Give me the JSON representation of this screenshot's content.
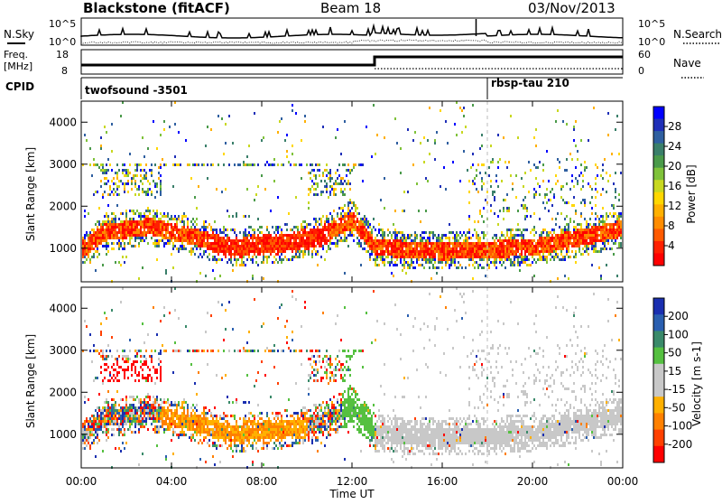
{
  "header": {
    "station": "Blackstone (fitACF)",
    "beam": "Beam 18",
    "date": "03/Nov/2013"
  },
  "nsky_panel": {
    "left_label": "N.Sky",
    "right_label": "N.Search",
    "ticks_left": [
      "10^5",
      "10^0"
    ],
    "ticks_right": [
      "10^5",
      "10^0"
    ]
  },
  "freq_panel": {
    "left_label_1": "Freq.",
    "left_label_2": "[MHz]",
    "right_label": "Nave",
    "ticks_left": [
      "18",
      "8"
    ],
    "ticks_right": [
      "60",
      "0"
    ]
  },
  "cpid_panel": {
    "label": "CPID",
    "segments": [
      {
        "name": "twofsound -3501",
        "start_hour": 0
      },
      {
        "name": "rbsp-tau 210",
        "start_hour": 18
      }
    ]
  },
  "colorbars": {
    "power": {
      "label": "Power [dB]",
      "ticks": [
        "28",
        "24",
        "20",
        "16",
        "12",
        "8",
        "4"
      ],
      "colors": [
        "#0000ff",
        "#1f2fb8",
        "#2f5fa0",
        "#3a7f6a",
        "#4a9a4a",
        "#7fc23a",
        "#c8d820",
        "#ffd700",
        "#ffb000",
        "#ff8c00",
        "#ff5a00",
        "#ff2000",
        "#ff0000"
      ]
    },
    "velocity": {
      "label": "Velocity [m s-1]",
      "ticks": [
        "200",
        "100",
        "50",
        "15",
        "-15",
        "-50",
        "-100",
        "-200"
      ],
      "colors": [
        "#1a2fb0",
        "#2a5fb0",
        "#3a8a6a",
        "#55c040",
        "#c8c8c8",
        "#c8c8c8",
        "#ffb000",
        "#ff8000",
        "#ff4000",
        "#ff0000"
      ]
    }
  },
  "time_axis": {
    "title": "Time UT",
    "ticks": [
      "00:00",
      "04:00",
      "08:00",
      "12:00",
      "16:00",
      "20:00",
      "00:00"
    ]
  },
  "chart_data": [
    {
      "type": "heatmap",
      "title": "Power",
      "ylabel": "Slant Range [km]",
      "xlabel": "Time UT",
      "xlim_hours": [
        0,
        24
      ],
      "ylim": [
        200,
        4500
      ],
      "yticks": [
        1000,
        2000,
        3000,
        4000
      ],
      "colorbar_label": "Power [dB]",
      "colorbar_range": [
        0,
        30
      ],
      "main_echo_band": [
        {
          "hour": 0.0,
          "range_km": 1000
        },
        {
          "hour": 1.0,
          "range_km": 1400
        },
        {
          "hour": 3.0,
          "range_km": 1550
        },
        {
          "hour": 5.0,
          "range_km": 1300
        },
        {
          "hour": 6.5,
          "range_km": 1050
        },
        {
          "hour": 9.0,
          "range_km": 1150
        },
        {
          "hour": 10.5,
          "range_km": 1300
        },
        {
          "hour": 12.0,
          "range_km": 1700
        },
        {
          "hour": 13.0,
          "range_km": 1050
        },
        {
          "hour": 16.0,
          "range_km": 950
        },
        {
          "hour": 20.0,
          "range_km": 1050
        },
        {
          "hour": 24.0,
          "range_km": 1500
        }
      ]
    },
    {
      "type": "heatmap",
      "title": "Velocity",
      "ylabel": "Slant Range [km]",
      "xlabel": "Time UT",
      "xlim_hours": [
        0,
        24
      ],
      "ylim": [
        200,
        4500
      ],
      "yticks": [
        1000,
        2000,
        3000,
        4000
      ],
      "colorbar_label": "Velocity [m s-1]",
      "colorbar_range": [
        -200,
        200
      ]
    }
  ]
}
